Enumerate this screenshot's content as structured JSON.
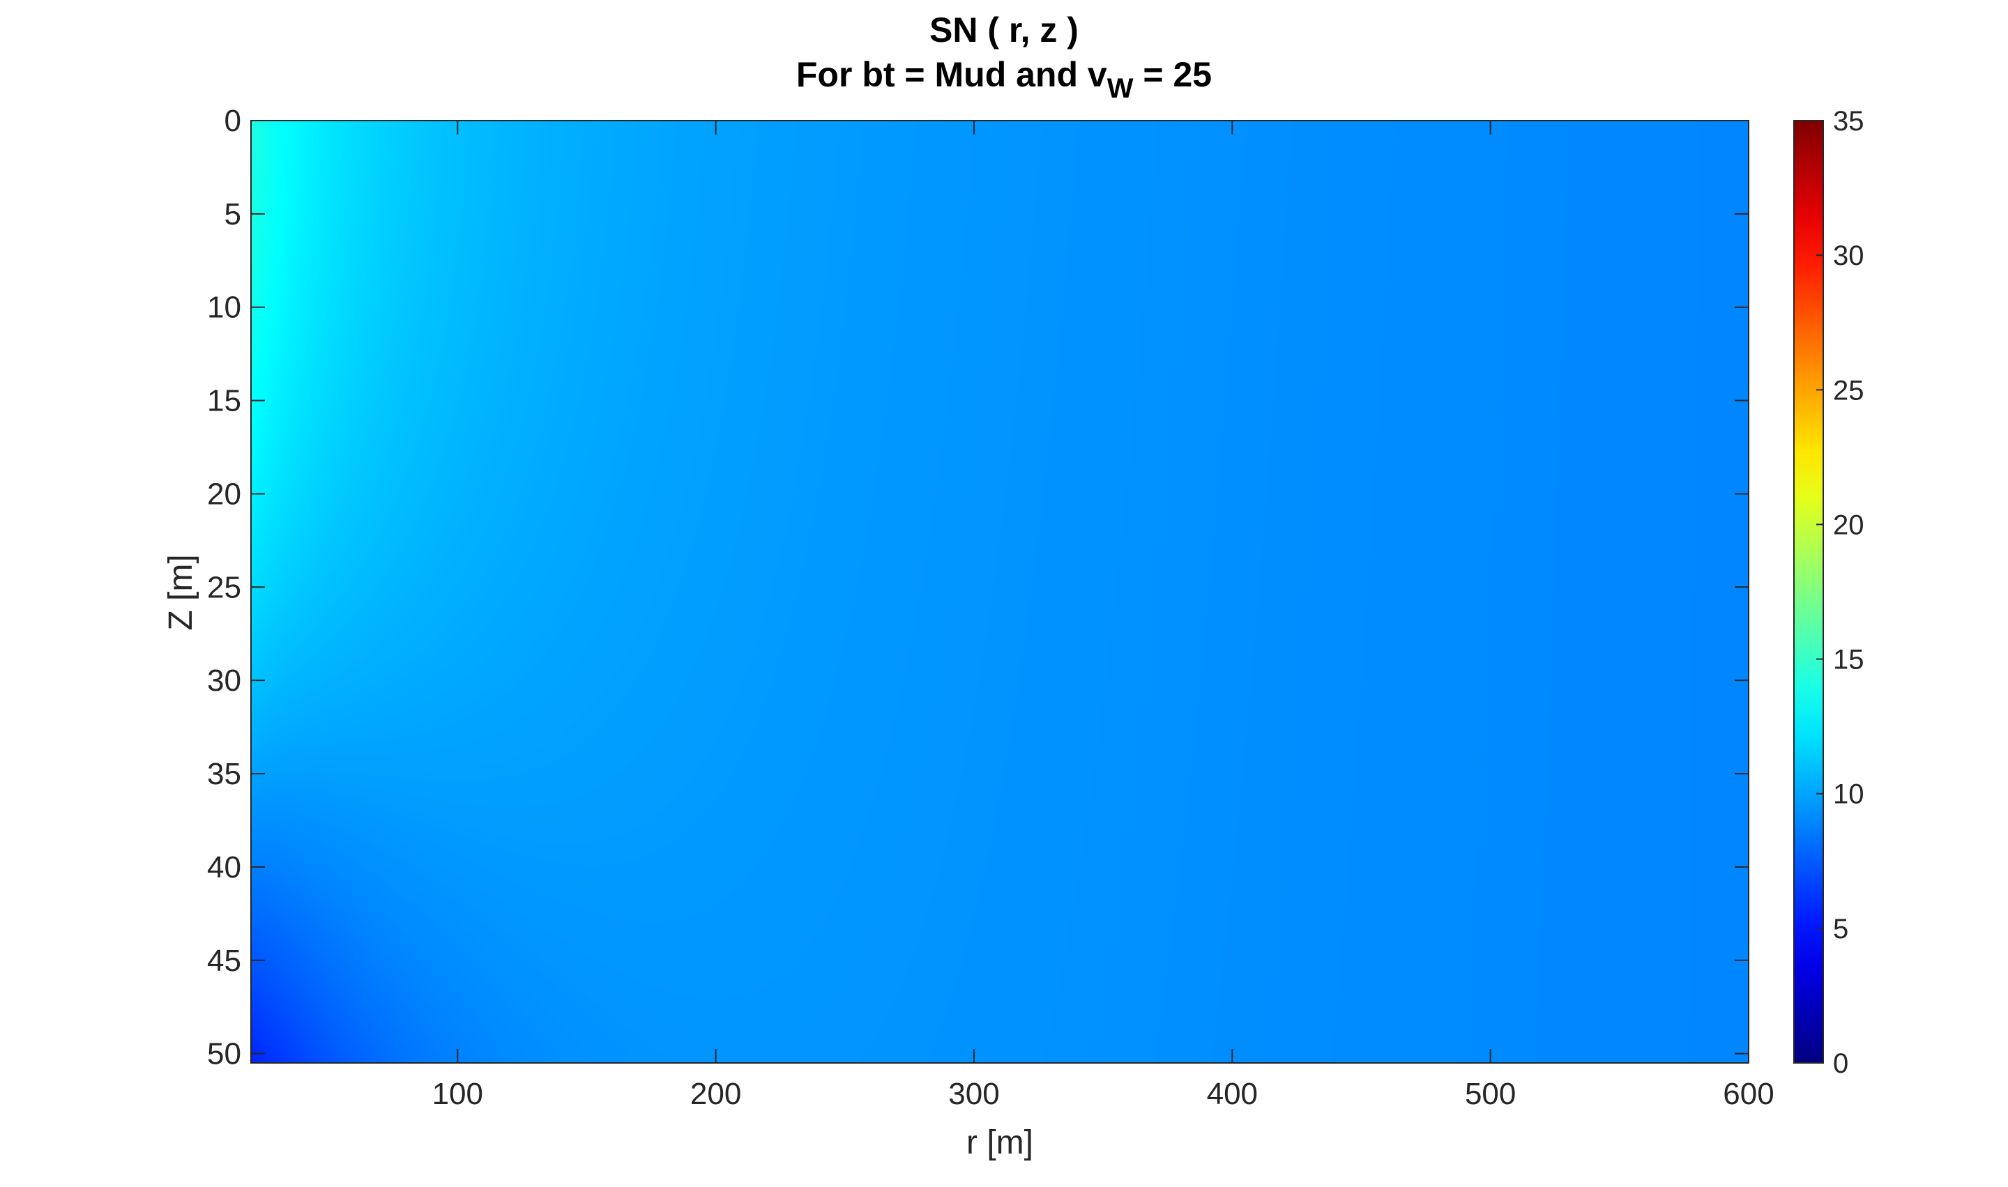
{
  "chart_data": {
    "type": "heatmap",
    "title_line1": "SN ( r, z )",
    "title_line2_main": "For bt = Mud and v",
    "title_line2_sub": "W",
    "title_line2_tail": " = 25",
    "xlabel": "r [m]",
    "ylabel": "Z [m]",
    "x_ticks": [
      "100",
      "200",
      "300",
      "400",
      "500",
      "600"
    ],
    "x_tick_values": [
      100,
      200,
      300,
      400,
      500,
      600
    ],
    "y_ticks": [
      "0",
      "5",
      "10",
      "15",
      "20",
      "25",
      "30",
      "35",
      "40",
      "45",
      "50"
    ],
    "y_tick_values": [
      0,
      5,
      10,
      15,
      20,
      25,
      30,
      35,
      40,
      45,
      50
    ],
    "xlim": [
      20,
      600
    ],
    "ylim": [
      0,
      50.5
    ],
    "y_direction": "reversed",
    "colorbar": {
      "colormap": "jet",
      "range": [
        0,
        35
      ],
      "ticks": [
        "0",
        "5",
        "10",
        "15",
        "20",
        "25",
        "30",
        "35"
      ],
      "tick_values": [
        0,
        5,
        10,
        15,
        20,
        25,
        30,
        35
      ],
      "placement": "right"
    },
    "field": {
      "description_points": [
        {
          "r": 20,
          "z": 0,
          "value": 14.0
        },
        {
          "r": 20,
          "z": 15,
          "value": 13.2
        },
        {
          "r": 20,
          "z": 25,
          "value": 11.5
        },
        {
          "r": 20,
          "z": 35,
          "value": 9.8
        },
        {
          "r": 20,
          "z": 45,
          "value": 7.8
        },
        {
          "r": 20,
          "z": 50,
          "value": 6.2
        },
        {
          "r": 100,
          "z": 0,
          "value": 12.0
        },
        {
          "r": 100,
          "z": 50,
          "value": 10.6
        },
        {
          "r": 200,
          "z": 25,
          "value": 11.2
        },
        {
          "r": 300,
          "z": 25,
          "value": 10.8
        },
        {
          "r": 400,
          "z": 25,
          "value": 10.1
        },
        {
          "r": 500,
          "z": 25,
          "value": 9.5
        },
        {
          "r": 600,
          "z": 25,
          "value": 9.0
        }
      ]
    }
  }
}
